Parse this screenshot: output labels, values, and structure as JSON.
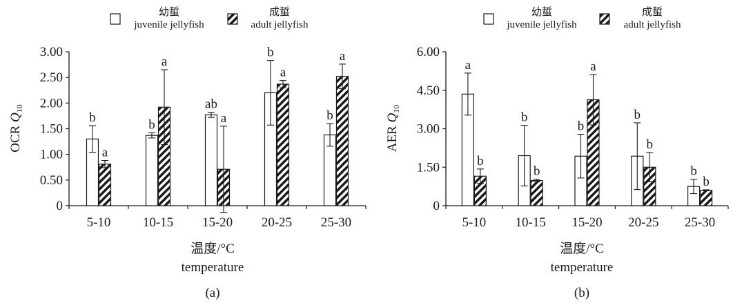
{
  "figure": {
    "x_title_cn": "温度/°C",
    "x_title_en": "temperature",
    "legend": {
      "juvenile_cn": "幼蜇",
      "juvenile_en": "juvenile jellyfish",
      "adult_cn": "成蜇",
      "adult_en": "adult jellyfish"
    }
  },
  "chart_data": [
    {
      "type": "bar",
      "panel_label": "(a)",
      "ylabel": "OCR Q10",
      "ylabel_main": "OCR ",
      "ylabel_q": "Q",
      "ylabel_sub": "10",
      "xlabel": "温度/°C temperature",
      "categories": [
        "5-10",
        "10-15",
        "15-20",
        "20-25",
        "25-30"
      ],
      "ylim": [
        0,
        3
      ],
      "yticks": [
        0,
        0.5,
        1,
        1.5,
        2,
        2.5,
        3
      ],
      "ytick_labels": [
        "0",
        "0.50",
        "1.00",
        "1.50",
        "2.00",
        "2.50",
        "3.00"
      ],
      "series": [
        {
          "name": "幼蜇 juvenile jellyfish",
          "pattern": "open",
          "values": [
            1.3,
            1.37,
            1.77,
            2.2,
            1.38
          ],
          "errors": [
            0.26,
            0.05,
            0.05,
            0.63,
            0.22
          ],
          "letters": [
            "b",
            "b",
            "ab",
            "b",
            "b"
          ]
        },
        {
          "name": "成蜇 adult jellyfish",
          "pattern": "hatched",
          "values": [
            0.81,
            1.92,
            0.71,
            2.37,
            2.52
          ],
          "errors": [
            0.07,
            0.73,
            0.84,
            0.07,
            0.24
          ],
          "letters": [
            "a",
            "a",
            "a",
            "a",
            "a"
          ]
        }
      ],
      "grid": false,
      "legend": "top-center"
    },
    {
      "type": "bar",
      "panel_label": "(b)",
      "ylabel": "AER Q10",
      "ylabel_main": "AER ",
      "ylabel_q": "Q",
      "ylabel_sub": "10",
      "xlabel": "温度/°C temperature",
      "categories": [
        "5-10",
        "10-15",
        "15-20",
        "20-25",
        "25-30"
      ],
      "ylim": [
        0,
        6
      ],
      "yticks": [
        0,
        1.5,
        3,
        4.5,
        6
      ],
      "ytick_labels": [
        "0",
        "1.50",
        "3.00",
        "4.50",
        "6.00"
      ],
      "series": [
        {
          "name": "幼蜇 juvenile jellyfish",
          "pattern": "open",
          "values": [
            4.35,
            1.95,
            1.93,
            1.93,
            0.75
          ],
          "errors": [
            0.82,
            1.18,
            0.85,
            1.3,
            0.28
          ],
          "letters": [
            "a",
            "b",
            "b",
            "b",
            "b"
          ]
        },
        {
          "name": "成蜇 adult jellyfish",
          "pattern": "hatched",
          "values": [
            1.15,
            0.98,
            4.13,
            1.5,
            0.6
          ],
          "errors": [
            0.28,
            0.05,
            0.98,
            0.57,
            0.02
          ],
          "letters": [
            "b",
            "b",
            "a",
            "b",
            "b"
          ]
        }
      ],
      "grid": false,
      "legend": "top-center"
    }
  ]
}
